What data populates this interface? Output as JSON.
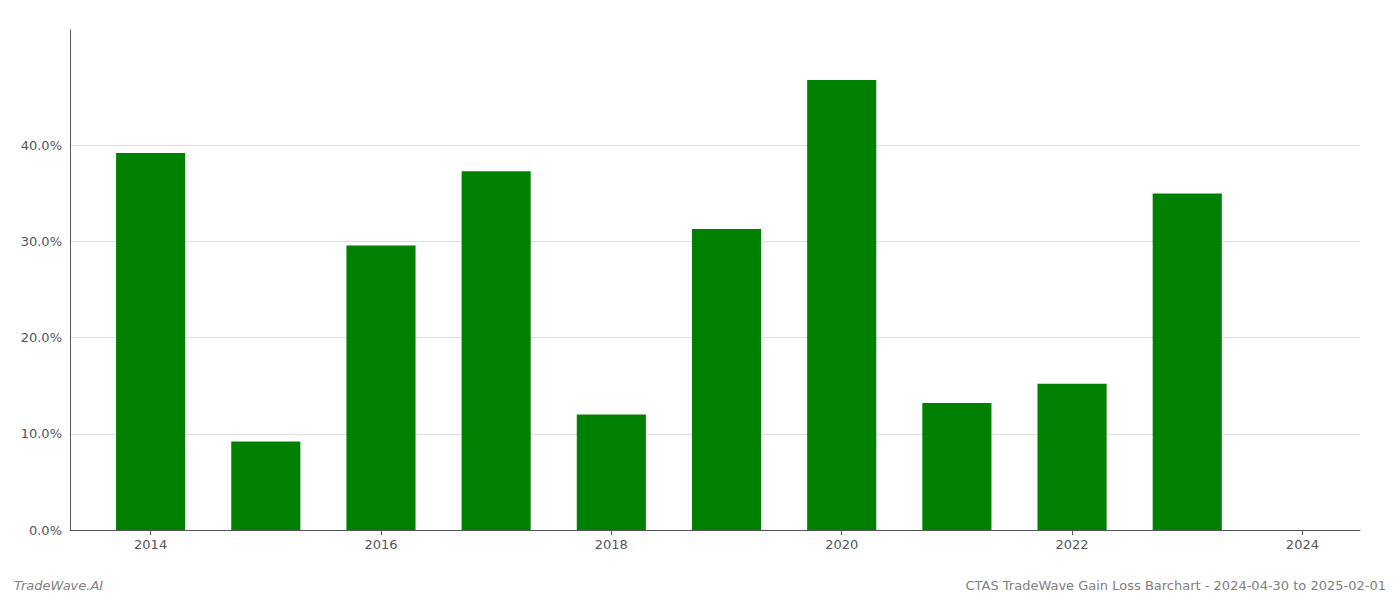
{
  "chart_data": {
    "type": "bar",
    "x": [
      2014,
      2015,
      2016,
      2017,
      2018,
      2019,
      2020,
      2021,
      2022,
      2023
    ],
    "values": [
      0.392,
      0.092,
      0.296,
      0.373,
      0.12,
      0.313,
      0.468,
      0.132,
      0.152,
      0.35
    ],
    "color": "#008000",
    "xlim": [
      2013.3,
      2024.5
    ],
    "xticks": [
      2014,
      2016,
      2018,
      2020,
      2022,
      2024
    ],
    "ylim": [
      0.0,
      0.52
    ],
    "yticks": [
      {
        "value": 0.0,
        "label": "0.0%"
      },
      {
        "value": 0.1,
        "label": "10.0%"
      },
      {
        "value": 0.2,
        "label": "20.0%"
      },
      {
        "value": 0.3,
        "label": "30.0%"
      },
      {
        "value": 0.4,
        "label": "40.0%"
      }
    ],
    "grid": true,
    "annotations": [
      "TradeWave.AI",
      "CTAS TradeWave Gain Loss Barchart - 2024-04-30 to 2025-02-01"
    ]
  }
}
